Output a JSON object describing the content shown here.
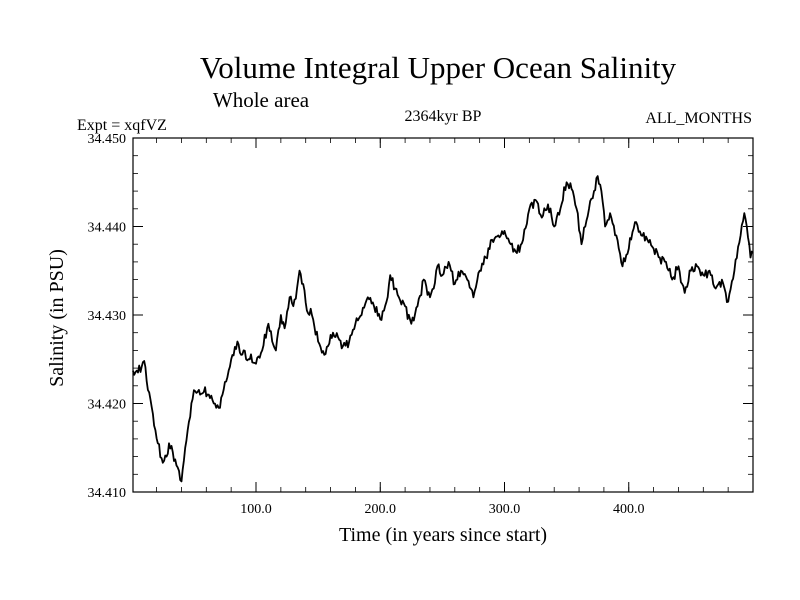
{
  "chart_data": {
    "type": "line",
    "title": "Volume Integral Upper Ocean Salinity",
    "subtitle": "Whole area",
    "experiment_label": "Expt = xqfVZ",
    "period_label": "2364kyr BP",
    "months_label": "ALL_MONTHS",
    "xlabel": "Time (in years since start)",
    "ylabel": "Salinity (in PSU)",
    "xlim": [
      1,
      500
    ],
    "ylim": [
      34.41,
      34.45
    ],
    "x_ticks": [
      100,
      200,
      300,
      400
    ],
    "x_tick_labels": [
      "100.0",
      "200.0",
      "300.0",
      "400.0"
    ],
    "y_ticks": [
      34.41,
      34.42,
      34.43,
      34.44,
      34.45
    ],
    "y_tick_labels": [
      "34.410",
      "34.420",
      "34.430",
      "34.440",
      "34.450"
    ],
    "grid": false,
    "series": [
      {
        "name": "salinity",
        "color": "#000000",
        "x": [
          1,
          5,
          10,
          12,
          15,
          18,
          21,
          25,
          28,
          30,
          33,
          36,
          40,
          43,
          45,
          47,
          50,
          55,
          58,
          62,
          66,
          70,
          73,
          76,
          80,
          85,
          88,
          90,
          92,
          95,
          100,
          105,
          110,
          113,
          116,
          120,
          123,
          127,
          130,
          133,
          135,
          138,
          141,
          145,
          150,
          155,
          158,
          162,
          166,
          170,
          175,
          180,
          185,
          190,
          195,
          200,
          203,
          205,
          208,
          212,
          215,
          220,
          225,
          230,
          235,
          240,
          243,
          246,
          250,
          255,
          260,
          265,
          270,
          275,
          280,
          285,
          290,
          295,
          300,
          305,
          310,
          315,
          320,
          325,
          330,
          335,
          340,
          345,
          350,
          355,
          358,
          362,
          365,
          368,
          372,
          375,
          378,
          381,
          385,
          390,
          395,
          400,
          405,
          410,
          415,
          420,
          425,
          430,
          435,
          440,
          443,
          445,
          450,
          455,
          460,
          465,
          470,
          475,
          478,
          480,
          485,
          490,
          493,
          495,
          498,
          500
        ],
        "values": [
          34.4237,
          34.4235,
          34.4248,
          34.4225,
          34.4205,
          34.4175,
          34.4155,
          34.4133,
          34.414,
          34.4155,
          34.4145,
          34.413,
          34.4112,
          34.415,
          34.417,
          34.4185,
          34.4215,
          34.421,
          34.4213,
          34.421,
          34.42,
          34.4195,
          34.421,
          34.4225,
          34.425,
          34.427,
          34.4255,
          34.426,
          34.425,
          34.425,
          34.4245,
          34.426,
          34.429,
          34.427,
          34.426,
          34.43,
          34.4285,
          34.432,
          34.431,
          34.433,
          34.435,
          34.4335,
          34.4305,
          34.43,
          34.427,
          34.4255,
          34.4265,
          34.428,
          34.4275,
          34.4265,
          34.427,
          34.429,
          34.43,
          34.432,
          34.431,
          34.4295,
          34.4305,
          34.4315,
          34.4345,
          34.433,
          34.432,
          34.431,
          34.429,
          34.431,
          34.434,
          34.432,
          34.433,
          34.4355,
          34.4345,
          34.436,
          34.4335,
          34.435,
          34.434,
          34.432,
          34.435,
          34.4365,
          34.4385,
          34.439,
          34.4395,
          34.438,
          34.437,
          34.4385,
          34.442,
          34.443,
          34.441,
          34.4425,
          34.44,
          34.442,
          34.445,
          34.444,
          34.442,
          34.438,
          34.44,
          34.442,
          34.444,
          34.4457,
          34.444,
          34.44,
          34.4415,
          34.439,
          34.4355,
          34.4375,
          34.4405,
          34.439,
          34.4385,
          34.4375,
          34.4365,
          34.436,
          34.434,
          34.4355,
          34.4335,
          34.4325,
          34.435,
          34.4355,
          34.4345,
          34.435,
          34.433,
          34.434,
          34.4325,
          34.4315,
          34.435,
          34.439,
          34.4415,
          34.44,
          34.4365,
          34.437
        ]
      }
    ]
  }
}
